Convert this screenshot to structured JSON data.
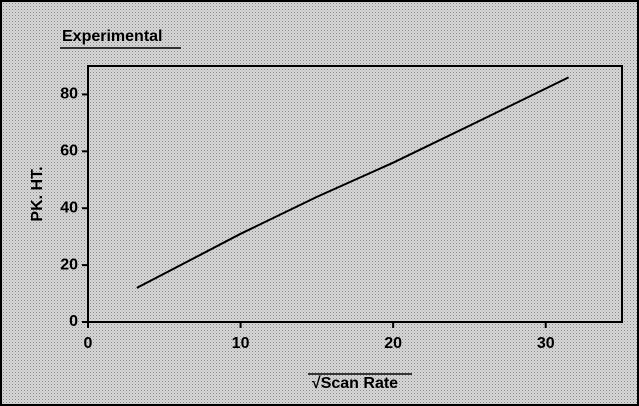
{
  "chart_data": {
    "type": "line",
    "title": "Experimental",
    "xlabel": "√Scan Rate",
    "ylabel": "PK. HT.",
    "x": [
      3.2,
      5,
      10,
      15,
      20,
      25,
      31.5
    ],
    "series": [
      {
        "name": "Experimental",
        "color": "#000000",
        "values": [
          12,
          17,
          31,
          44,
          56,
          69,
          86
        ]
      }
    ],
    "xlim": [
      0,
      35
    ],
    "xticks": [
      0,
      10,
      20,
      30
    ],
    "ylim": [
      0,
      90
    ],
    "yticks": [
      0,
      20,
      40,
      60,
      80
    ],
    "grid": false
  }
}
